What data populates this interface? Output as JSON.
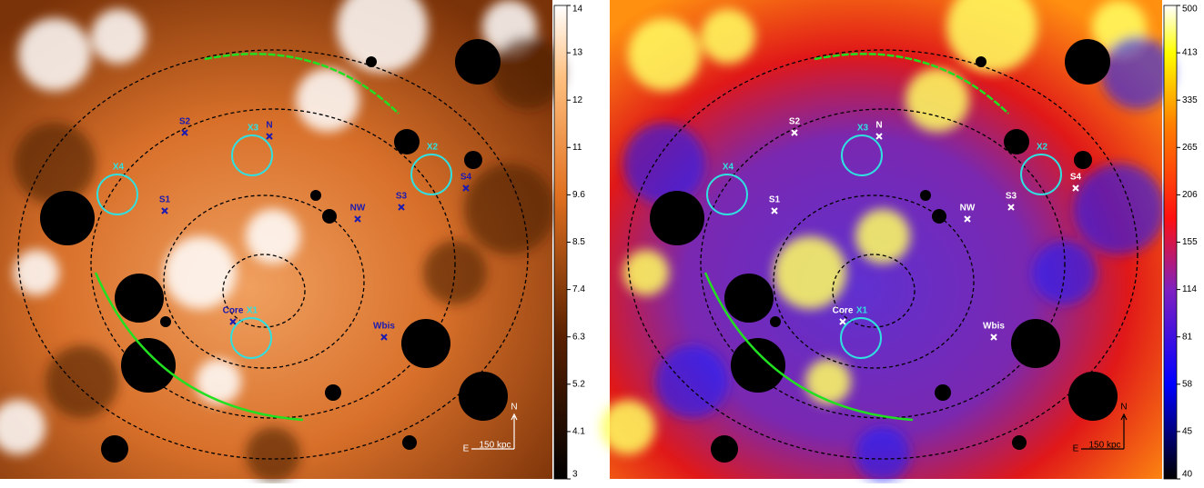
{
  "panels": [
    {
      "labels": [
        "S2",
        "X3",
        "N",
        "X4",
        "S1",
        "X2",
        "S4",
        "S3",
        "NW",
        "Core",
        "X1",
        "Wbis"
      ],
      "compass": {
        "north": "N",
        "east": "E",
        "scale": "150 kpc"
      },
      "colorbar": {
        "ticks": [
          3,
          4.1,
          5.2,
          6.3,
          7.4,
          8.5,
          9.6,
          11,
          12,
          13,
          14
        ]
      }
    },
    {
      "labels": [
        "S2",
        "X3",
        "N",
        "X4",
        "S1",
        "X2",
        "S4",
        "S3",
        "NW",
        "Core",
        "X1",
        "Wbis"
      ],
      "compass": {
        "north": "N",
        "east": "E",
        "scale": "150 kpc"
      },
      "colorbar": {
        "ticks": [
          40,
          45,
          58,
          81,
          114,
          155,
          206,
          265,
          335,
          413,
          500
        ]
      }
    }
  ]
}
